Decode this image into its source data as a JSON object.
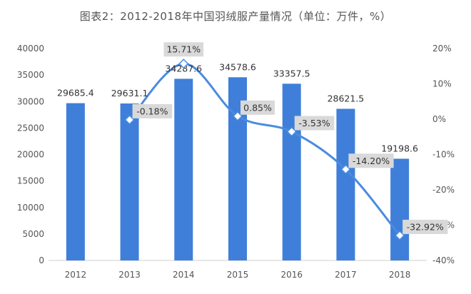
{
  "chart_data": {
    "type": "bar",
    "title": "图表2：2012-2018年中国羽绒服产量情况（单位：万件，%）",
    "categories": [
      "2012",
      "2013",
      "2014",
      "2015",
      "2016",
      "2017",
      "2018"
    ],
    "series": [
      {
        "type": "bar",
        "axis": "left",
        "values": [
          29685.4,
          29631.1,
          34287.6,
          34578.6,
          33357.5,
          28621.5,
          19198.6
        ],
        "labels": [
          "29685.4",
          "29631.1",
          "34287.6",
          "34578.6",
          "33357.5",
          "28621.5",
          "19198.6"
        ]
      },
      {
        "type": "line",
        "axis": "right",
        "values": [
          null,
          -0.18,
          15.71,
          0.85,
          -3.53,
          -14.2,
          -32.92
        ],
        "labels": [
          "",
          "-0.18%",
          "15.71%",
          "0.85%",
          "-3.53%",
          "-14.20%",
          "-32.92%"
        ]
      }
    ],
    "y_left": {
      "min": 0,
      "max": 40000,
      "ticks": [
        "0",
        "5000",
        "10000",
        "15000",
        "20000",
        "25000",
        "30000",
        "35000",
        "40000"
      ]
    },
    "y_right": {
      "min": -40,
      "max": 20,
      "ticks": [
        "-40%",
        "-30%",
        "-20%",
        "-10%",
        "0%",
        "10%",
        "20%"
      ]
    },
    "grid": false,
    "colors": {
      "bar": "#3f7fd9",
      "line": "#4a8be0",
      "label_bg": "#d9d9d9"
    }
  }
}
